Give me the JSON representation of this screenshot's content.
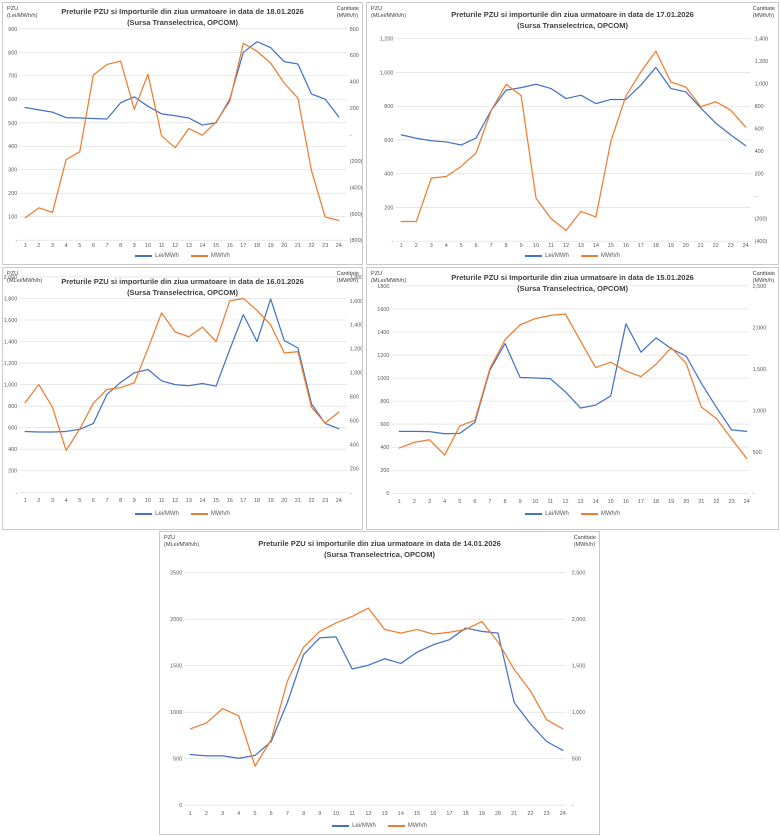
{
  "page": {
    "background": "#ffffff"
  },
  "chart_data": [
    {
      "type": "line",
      "title": "Preturile PZU si Importurile din ziua urmatoare in data de 18.01.2026",
      "subtitle": "(Sursa Transelectrica, OPCOM)",
      "left_axis": {
        "title": "PZU",
        "unit": "(Lei/MWh/h)",
        "range": [
          0,
          900
        ],
        "ticks": [
          "900",
          "800",
          "700",
          "600",
          "500",
          "400",
          "300",
          "200",
          "100",
          "-"
        ]
      },
      "right_axis": {
        "title": "Cantitate",
        "unit": "(MWh/h)",
        "range": [
          -800,
          800
        ],
        "ticks": [
          "800",
          "600",
          "400",
          "200",
          "-",
          "(200)",
          "(400)",
          "(600)",
          "(800)"
        ]
      },
      "x_labels": [
        "1",
        "2",
        "3",
        "4",
        "5",
        "6",
        "7",
        "8",
        "9",
        "10",
        "11",
        "12",
        "13",
        "14",
        "15",
        "16",
        "17",
        "18",
        "19",
        "20",
        "21",
        "22",
        "23",
        "24"
      ],
      "legend": [
        {
          "label": "Lei/MWh",
          "color": "#4472C4"
        },
        {
          "label": "MWh/h",
          "color": "#ED7D31"
        }
      ],
      "series": [
        {
          "name": "Lei/MWh",
          "axis": "left",
          "color": "#4472C4",
          "values": [
            565,
            555,
            545,
            522,
            520,
            518,
            516,
            585,
            610,
            570,
            538,
            530,
            520,
            490,
            500,
            600,
            800,
            845,
            820,
            760,
            750,
            622,
            600,
            525
          ]
        },
        {
          "name": "MWh/h",
          "axis": "right",
          "color": "#ED7D31",
          "values": [
            -630,
            -555,
            -590,
            -190,
            -130,
            450,
            530,
            555,
            190,
            455,
            -10,
            -100,
            45,
            -5,
            95,
            250,
            690,
            630,
            540,
            390,
            275,
            -275,
            -625,
            -650
          ]
        }
      ]
    },
    {
      "type": "line",
      "title": "Preturile PZU si importurile din ziua urmatoare in data de 17.01.2026",
      "subtitle": "(Sursa Transelectrica, OPCOM)",
      "left_axis": {
        "title": "PZU",
        "unit": "(MLei/MWh/h)",
        "range": [
          0,
          1200
        ],
        "ticks": [
          "1,200",
          "1,000",
          "800",
          "600",
          "400",
          "200",
          "-"
        ]
      },
      "right_axis": {
        "title": "Cantitate",
        "unit": "(MWh/h)",
        "range": [
          -400,
          1400
        ],
        "ticks": [
          "1,400",
          "1,200",
          "1,000",
          "800",
          "600",
          "400",
          "200",
          "-",
          "(200)",
          "(400)"
        ]
      },
      "x_labels": [
        "1",
        "2",
        "3",
        "4",
        "5",
        "6",
        "7",
        "8",
        "9",
        "10",
        "11",
        "12",
        "13",
        "14",
        "15",
        "16",
        "17",
        "18",
        "19",
        "20",
        "21",
        "22",
        "23",
        "24"
      ],
      "legend": [
        {
          "label": "Lei/MWh",
          "color": "#4472C4"
        },
        {
          "label": "MWh/h",
          "color": "#ED7D31"
        }
      ],
      "series": [
        {
          "name": "Lei/MWh",
          "axis": "left",
          "color": "#4472C4",
          "values": [
            630,
            610,
            595,
            588,
            570,
            612,
            775,
            895,
            910,
            930,
            905,
            845,
            865,
            815,
            840,
            840,
            925,
            1030,
            905,
            885,
            790,
            700,
            630,
            565
          ]
        },
        {
          "name": "MWh/h",
          "axis": "right",
          "color": "#ED7D31",
          "values": [
            -225,
            -225,
            160,
            175,
            265,
            385,
            760,
            995,
            895,
            -20,
            -200,
            -305,
            -135,
            -185,
            490,
            890,
            1105,
            1290,
            1015,
            970,
            795,
            840,
            765,
            615
          ]
        }
      ]
    },
    {
      "type": "line",
      "title": "Preturile PZU si importurile din ziua urmatoare in data de 16.01.2026",
      "subtitle": "(Sursa Transelectrica, OPCOM)",
      "left_axis": {
        "title": "PZU",
        "unit": "(MLei/MWh/h)",
        "range": [
          0,
          2000
        ],
        "ticks": [
          "2,000",
          "1,800",
          "1,600",
          "1,400",
          "1,200",
          "1,000",
          "800",
          "600",
          "400",
          "200",
          "-"
        ]
      },
      "right_axis": {
        "title": "Cantitate",
        "unit": "(MWh/h)",
        "range": [
          0,
          1800
        ],
        "ticks": [
          "1,800",
          "1,600",
          "1,400",
          "1,200",
          "1,000",
          "800",
          "600",
          "400",
          "200",
          "-"
        ]
      },
      "x_labels": [
        "1",
        "2",
        "3",
        "4",
        "5",
        "6",
        "7",
        "8",
        "9",
        "10",
        "11",
        "12",
        "13",
        "14",
        "15",
        "16",
        "17",
        "18",
        "19",
        "20",
        "21",
        "22",
        "23",
        "24"
      ],
      "legend": [
        {
          "label": "Lei/MWh",
          "color": "#4472C4"
        },
        {
          "label": "MWh/h",
          "color": "#ED7D31"
        }
      ],
      "series": [
        {
          "name": "Lei/MWh",
          "axis": "left",
          "color": "#4472C4",
          "values": [
            565,
            560,
            560,
            565,
            585,
            640,
            910,
            1020,
            1110,
            1140,
            1035,
            1000,
            990,
            1010,
            985,
            1325,
            1650,
            1400,
            1795,
            1410,
            1340,
            820,
            640,
            590
          ]
        },
        {
          "name": "MWh/h",
          "axis": "right",
          "color": "#ED7D31",
          "values": [
            750,
            900,
            710,
            350,
            530,
            745,
            860,
            875,
            915,
            1200,
            1500,
            1340,
            1300,
            1380,
            1260,
            1600,
            1620,
            1520,
            1400,
            1165,
            1175,
            710,
            580,
            670
          ]
        }
      ]
    },
    {
      "type": "line",
      "title": "Preturile PZU si Importurile din ziua urmatoare in data de 15.01.2026",
      "subtitle": "(Sursa Transelectrica, OPCOM)",
      "left_axis": {
        "title": "PZU",
        "unit": "(MLei/MWh/h)",
        "range": [
          0,
          1800
        ],
        "ticks": [
          "1800",
          "1600",
          "1400",
          "1200",
          "1000",
          "800",
          "600",
          "400",
          "200",
          "0"
        ]
      },
      "right_axis": {
        "title": "Cantitate",
        "unit": "(MWh/h)",
        "range": [
          0,
          2500
        ],
        "ticks": [
          "2,500",
          "2,000",
          "1,500",
          "1,000",
          "500",
          "-"
        ]
      },
      "x_labels": [
        "1",
        "2",
        "3",
        "4",
        "5",
        "6",
        "7",
        "8",
        "9",
        "10",
        "11",
        "12",
        "13",
        "14",
        "15",
        "16",
        "17",
        "18",
        "19",
        "20",
        "21",
        "22",
        "23",
        "24"
      ],
      "legend": [
        {
          "label": "Lei/MWh",
          "color": "#4472C4"
        },
        {
          "label": "MWh/h",
          "color": "#ED7D31"
        }
      ],
      "series": [
        {
          "name": "Lei/MWh",
          "axis": "left",
          "color": "#4472C4",
          "values": [
            537,
            537,
            535,
            517,
            520,
            615,
            1070,
            1300,
            1005,
            1000,
            995,
            880,
            740,
            765,
            845,
            1470,
            1225,
            1350,
            1255,
            1190,
            955,
            745,
            550,
            537
          ]
        },
        {
          "name": "MWh/h",
          "axis": "right",
          "color": "#ED7D31",
          "values": [
            545,
            615,
            645,
            460,
            810,
            880,
            1505,
            1850,
            2030,
            2105,
            2145,
            2160,
            1835,
            1515,
            1580,
            1475,
            1405,
            1555,
            1755,
            1565,
            1040,
            900,
            655,
            420
          ]
        }
      ]
    },
    {
      "type": "line",
      "title": "Preturile PZU si importurile din ziua urmatoare in data de 14.01.2026",
      "subtitle": "(Sursa Transelectrica, OPCOM)",
      "left_axis": {
        "title": "PZU",
        "unit": "(MLei/MWh/h)",
        "range": [
          0,
          2500
        ],
        "ticks": [
          "2500",
          "2000",
          "1500",
          "1000",
          "500",
          "0"
        ]
      },
      "right_axis": {
        "title": "Cantitate",
        "unit": "(MWh/h)",
        "range": [
          0,
          2500
        ],
        "ticks": [
          "2,500",
          "2,000",
          "1,500",
          "1,000",
          "500",
          "-"
        ]
      },
      "x_labels": [
        "1",
        "2",
        "3",
        "4",
        "5",
        "6",
        "7",
        "8",
        "9",
        "10",
        "11",
        "12",
        "13",
        "14",
        "15",
        "16",
        "17",
        "18",
        "19",
        "20",
        "21",
        "22",
        "23",
        "24"
      ],
      "legend": [
        {
          "label": "Lei/MWh",
          "color": "#4472C4"
        },
        {
          "label": "MWh/h",
          "color": "#ED7D31"
        }
      ],
      "series": [
        {
          "name": "Lei/MWh",
          "axis": "left",
          "color": "#4472C4",
          "values": [
            545,
            530,
            530,
            505,
            535,
            685,
            1105,
            1620,
            1800,
            1810,
            1465,
            1505,
            1575,
            1525,
            1645,
            1725,
            1780,
            1905,
            1870,
            1850,
            1105,
            875,
            685,
            590
          ]
        },
        {
          "name": "MWh/h",
          "axis": "right",
          "color": "#ED7D31",
          "values": [
            820,
            885,
            1040,
            960,
            420,
            705,
            1335,
            1700,
            1870,
            1960,
            2030,
            2120,
            1890,
            1850,
            1890,
            1840,
            1860,
            1890,
            1975,
            1755,
            1460,
            1230,
            920,
            820
          ]
        }
      ]
    }
  ]
}
